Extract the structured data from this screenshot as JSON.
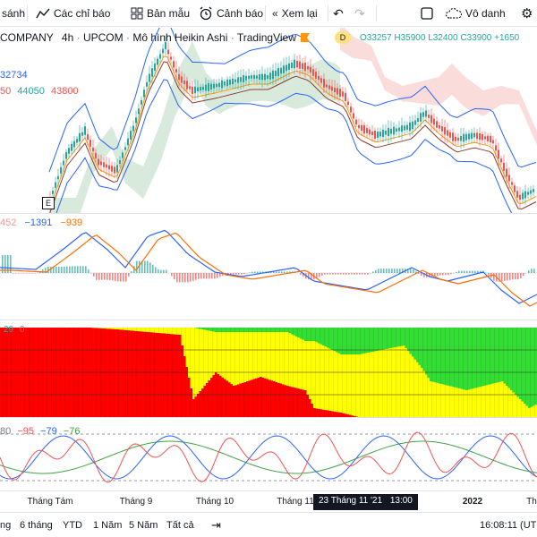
{
  "toolbar": {
    "compare_label": "sánh",
    "indicators_label": "Các chỉ báo",
    "templates_label": "Bản mẫu",
    "alert_label": "Cảnh báo",
    "replay_label": "Xem lại",
    "layout_name": "Vô danh"
  },
  "header": {
    "symbol": "COMPANY",
    "interval": "4h",
    "exchange": "UPCOM",
    "style": "Mô hình Heikin Ashi",
    "source": "TradingView",
    "badge_d": "D",
    "ohlc_o": "O33257",
    "ohlc_h": "H35900",
    "ohlc_l": "L32400",
    "ohlc_c": "C33900",
    "ohlc_change": "+1650",
    "ind1_value": "32734",
    "ind2_v1": "50",
    "ind2_v2": "44050",
    "ind2_v3": "43800"
  },
  "macd_legend": {
    "v1": "452",
    "v2": "−1391",
    "v3": "−939"
  },
  "trend_legend": {
    "v1": "29",
    "v2": "0"
  },
  "stoch_legend": {
    "v1": "80",
    "v2": "−95",
    "v3": "−79",
    "v4": "−76"
  },
  "time_axis": {
    "ticks": [
      "Tháng Tám",
      "Tháng 9",
      "Tháng 10",
      "Tháng 11",
      "2022",
      "Th"
    ],
    "crosshair_date": "23 Tháng 11 '21",
    "crosshair_time": "13:00",
    "marker_e": "E"
  },
  "bottombar": {
    "ranges": [
      "ng",
      "6 tháng",
      "YTD",
      "1 Năm",
      "5 Năm",
      "Tất cả"
    ],
    "clock": "16:08:11 (UTC"
  },
  "colors": {
    "up": "#26a69a",
    "down": "#ef5350",
    "cloud_green": "#b7d8c0",
    "cloud_red": "#f6c6c3",
    "bb": "#2962ff",
    "trend_red": "#ff0000",
    "trend_yellow": "#ffff00",
    "trend_green": "#33dd33"
  }
}
